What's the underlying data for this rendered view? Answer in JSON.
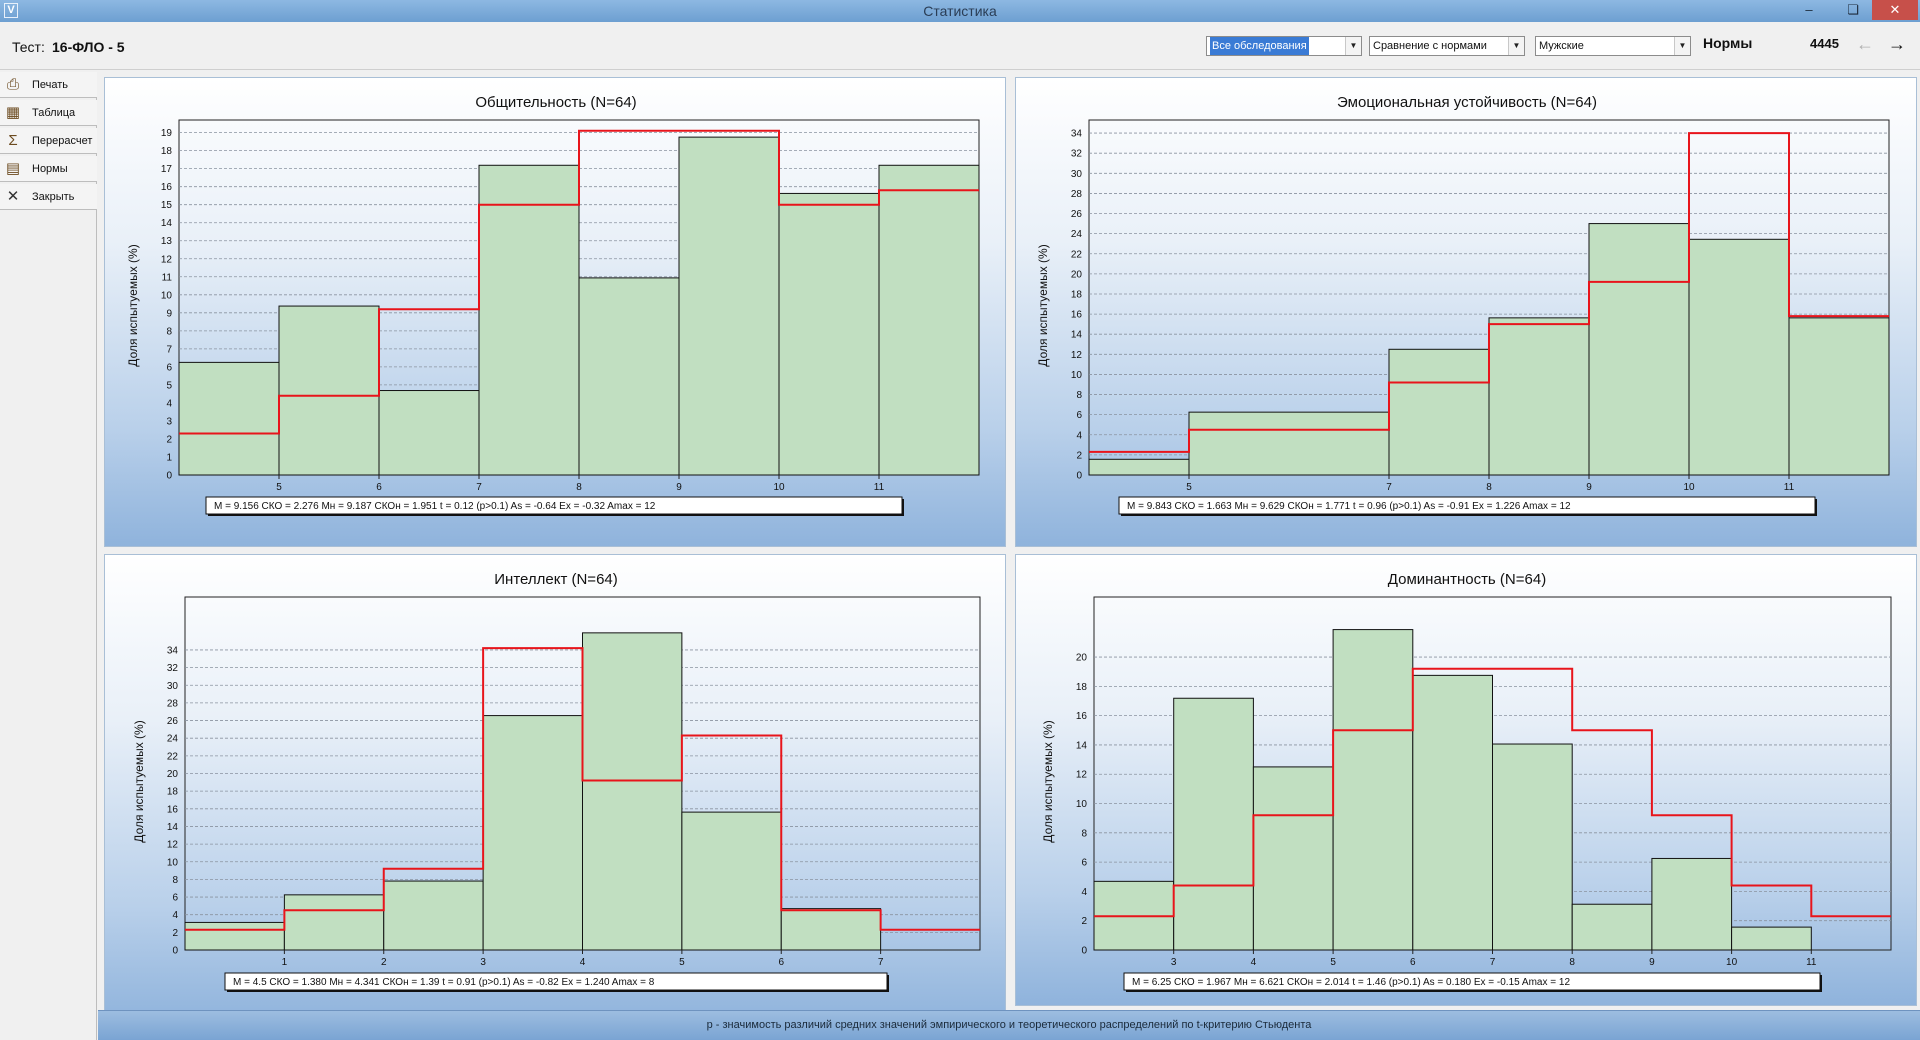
{
  "window": {
    "title": "Статистика"
  },
  "header": {
    "test_label": "Тест:",
    "test_name": "16-ФЛО - 5",
    "exam_select": "Все обследования",
    "mode_select": "Сравнение с нормами",
    "gender_select": "Мужские",
    "norms_label": "Нормы",
    "count": "4445"
  },
  "sidebar": {
    "items": [
      {
        "label": "Печать",
        "icon": "printer-icon"
      },
      {
        "label": "Таблица",
        "icon": "table-icon"
      },
      {
        "label": "Перерасчет",
        "icon": "recalc-icon"
      },
      {
        "label": "Нормы",
        "icon": "norms-chart-icon"
      },
      {
        "label": "Закрыть",
        "icon": "close-x-icon"
      }
    ]
  },
  "colors": {
    "bar_fill": "#c1dfc1",
    "norm_line": "#e8141b"
  },
  "footer_text": "p - значимость различий средних значений эмпирического и теоретического распределений по t-критерию Стьюдента",
  "chart_data": [
    {
      "type": "bar",
      "title": "Общительность (N=64)",
      "ylabel": "Доля испытуемых (%)",
      "edges": [
        4,
        5,
        6,
        7,
        8,
        9,
        10,
        11,
        12
      ],
      "xticks": [
        5,
        6,
        7,
        8,
        9,
        10,
        11
      ],
      "yticks": [
        0,
        1,
        2,
        3,
        4,
        5,
        6,
        7,
        8,
        9,
        10,
        11,
        12,
        13,
        14,
        15,
        16,
        17,
        18,
        19
      ],
      "ylim": [
        0,
        19.7
      ],
      "series": [
        {
          "values": [
            6.25,
            9.375,
            4.6875,
            17.1875,
            10.9375,
            18.75,
            15.625,
            17.1875
          ]
        },
        {
          "values": [
            2.3,
            4.4,
            9.2,
            15.0,
            19.1,
            19.1,
            15.0,
            15.8
          ]
        }
      ],
      "stats": "M = 9.156  СКО = 2.276  Мн = 9.187  СКОн = 1.951  t = 0.12  (p>0.1)    As = -0.64  Ex = -0.32  Amax = 12"
    },
    {
      "type": "bar",
      "title": "Эмоциональная устойчивость (N=64)",
      "ylabel": "Доля испытуемых (%)",
      "edges": [
        4,
        5,
        7,
        8,
        9,
        10,
        11,
        12
      ],
      "xticks": [
        5,
        7,
        8,
        9,
        10,
        11
      ],
      "yticks": [
        0,
        2,
        4,
        6,
        8,
        10,
        12,
        14,
        16,
        18,
        20,
        22,
        24,
        26,
        28,
        30,
        32,
        34
      ],
      "ylim": [
        0,
        35.3
      ],
      "series": [
        {
          "values": [
            1.5625,
            6.25,
            12.5,
            15.625,
            25.0,
            23.4375,
            15.625
          ]
        },
        {
          "values": [
            2.3,
            4.5,
            9.2,
            15.0,
            19.2,
            34.0,
            15.8
          ]
        }
      ],
      "stats": "M = 9.843  СКО = 1.663  Мн = 9.629  СКОн = 1.771  t = 0.96  (p>0.1)    As = -0.91  Ex = 1.226  Amax = 12"
    },
    {
      "type": "bar",
      "title": "Интеллект (N=64)",
      "ylabel": "Доля испытуемых (%)",
      "edges": [
        0,
        1,
        2,
        3,
        4,
        5,
        6,
        7,
        8
      ],
      "xticks": [
        1,
        2,
        3,
        4,
        5,
        6,
        7
      ],
      "yticks": [
        0,
        2,
        4,
        6,
        8,
        10,
        12,
        14,
        16,
        18,
        20,
        22,
        24,
        26,
        28,
        30,
        32,
        34
      ],
      "ylim": [
        0,
        40
      ],
      "series": [
        {
          "values": [
            3.125,
            6.25,
            7.8125,
            26.5625,
            35.9375,
            15.625,
            4.6875,
            0
          ]
        },
        {
          "values": [
            2.3,
            4.5,
            9.2,
            34.2,
            19.2,
            24.3,
            4.5,
            2.3
          ]
        }
      ],
      "stats": "M = 4.5  СКО = 1.380  Мн = 4.341  СКОн = 1.39  t = 0.91  (p>0.1)    As = -0.82  Ex = 1.240  Amax = 8"
    },
    {
      "type": "bar",
      "title": "Доминантность (N=64)",
      "ylabel": "Доля испытуемых (%)",
      "edges": [
        2,
        3,
        4,
        5,
        6,
        7,
        8,
        9,
        10,
        11,
        12
      ],
      "xticks": [
        3,
        4,
        5,
        6,
        7,
        8,
        9,
        10,
        11
      ],
      "yticks": [
        0,
        2,
        4,
        6,
        8,
        10,
        12,
        14,
        16,
        18,
        20
      ],
      "ylim": [
        0,
        24.1
      ],
      "series": [
        {
          "values": [
            4.6875,
            17.1875,
            12.5,
            21.875,
            18.75,
            14.0625,
            3.125,
            6.25,
            1.5625,
            0
          ]
        },
        {
          "values": [
            2.3,
            4.4,
            9.2,
            15.0,
            19.2,
            19.2,
            15.0,
            9.2,
            4.4,
            2.3
          ]
        }
      ],
      "stats": "M = 6.25  СКО = 1.967  Мн = 6.621  СКОн = 2.014  t = 1.46  (p>0.1)    As = 0.180  Ex = -0.15  Amax = 12"
    }
  ]
}
